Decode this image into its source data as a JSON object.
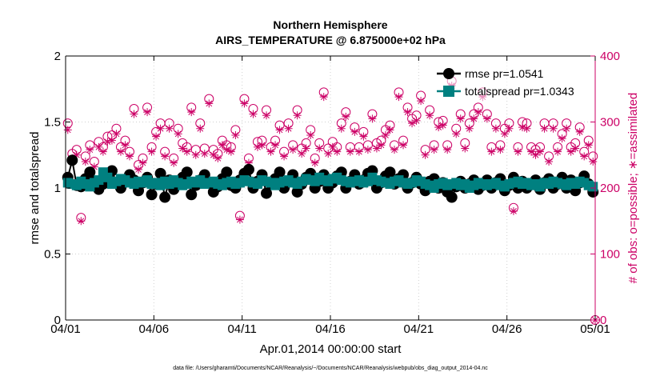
{
  "chart_data": {
    "type": "line",
    "title": [
      "Northern Hemisphere",
      "AIRS_TEMPERATURE @ 6.875000e+02 hPa"
    ],
    "xlabel": "Apr.01,2014 00:00:00 start",
    "ylabel": "rmse and totalspread",
    "y2label": "# of obs: o=possible; ∗=assimilated",
    "footnote": "data file: /Users/gharamti/Documents/NCAR/Reanalysis/~/Documents/NCAR/Reanalysis/webpub/obs_diag_output_2014-04.nc",
    "xlim": [
      0,
      30
    ],
    "ylim": [
      0,
      2
    ],
    "y2lim": [
      0,
      400
    ],
    "x_ticks": [
      0,
      5,
      10,
      15,
      20,
      25,
      30
    ],
    "x_tick_labels": [
      "04/01",
      "04/06",
      "04/11",
      "04/16",
      "04/21",
      "04/26",
      "05/01"
    ],
    "y_ticks": [
      0,
      0.5,
      1,
      1.5,
      2
    ],
    "y_tick_labels": [
      "0",
      "0.5",
      "1",
      "1.5",
      "2"
    ],
    "y2_ticks": [
      0,
      100,
      200,
      300,
      400
    ],
    "y2_tick_labels": [
      "0",
      "100",
      "200",
      "300",
      "400"
    ],
    "legend_position": "top-right",
    "series": [
      {
        "name": "rmse pr=1.0541",
        "axis": "left",
        "color": "#000000",
        "marker": "filled-circle",
        "x": [
          0.125,
          0.375,
          0.625,
          0.875,
          1.125,
          1.375,
          1.625,
          1.875,
          2.125,
          2.375,
          2.625,
          2.875,
          3.125,
          3.375,
          3.625,
          3.875,
          4.125,
          4.375,
          4.625,
          4.875,
          5.125,
          5.375,
          5.625,
          5.875,
          6.125,
          6.375,
          6.625,
          6.875,
          7.125,
          7.375,
          7.625,
          7.875,
          8.125,
          8.375,
          8.625,
          8.875,
          9.125,
          9.375,
          9.625,
          9.875,
          10.125,
          10.375,
          10.625,
          10.875,
          11.125,
          11.375,
          11.625,
          11.875,
          12.125,
          12.375,
          12.625,
          12.875,
          13.125,
          13.375,
          13.625,
          13.875,
          14.125,
          14.375,
          14.625,
          14.875,
          15.125,
          15.375,
          15.625,
          15.875,
          16.125,
          16.375,
          16.625,
          16.875,
          17.125,
          17.375,
          17.625,
          17.875,
          18.125,
          18.375,
          18.625,
          18.875,
          19.125,
          19.375,
          19.625,
          19.875,
          20.125,
          20.375,
          20.625,
          20.875,
          21.125,
          21.375,
          21.625,
          21.875,
          22.125,
          22.375,
          22.625,
          22.875,
          23.125,
          23.375,
          23.625,
          23.875,
          24.125,
          24.375,
          24.625,
          24.875,
          25.125,
          25.375,
          25.625,
          25.875,
          26.125,
          26.375,
          26.625,
          26.875,
          27.125,
          27.375,
          27.625,
          27.875,
          28.125,
          28.375,
          28.625,
          28.875,
          29.125,
          29.375,
          29.625,
          29.875
        ],
        "values": [
          1.08,
          1.21,
          1.02,
          1.01,
          1.07,
          1.12,
          1.05,
          0.99,
          1.03,
          1.08,
          1.13,
          1.04,
          1.0,
          1.05,
          1.1,
          1.06,
          0.98,
          1.04,
          1.08,
          0.95,
          1.03,
          1.11,
          0.93,
          1.06,
          0.99,
          1.04,
          1.08,
          1.12,
          0.95,
          1.02,
          1.06,
          1.1,
          1.04,
          0.97,
          1.01,
          1.07,
          1.12,
          1.02,
          1.0,
          1.06,
          1.11,
          1.14,
          1.0,
          1.05,
          1.1,
          0.96,
          1.03,
          1.07,
          1.12,
          1.0,
          1.05,
          1.1,
          0.97,
          1.03,
          1.08,
          1.11,
          1.0,
          1.05,
          1.1,
          1.0,
          1.04,
          1.09,
          1.12,
          1.0,
          1.05,
          1.1,
          1.03,
          1.06,
          1.11,
          1.13,
          1.0,
          1.04,
          1.09,
          1.12,
          1.03,
          1.07,
          1.1,
          1.0,
          1.04,
          1.08,
          1.03,
          0.98,
          1.05,
          1.07,
          1.0,
          1.04,
          0.97,
          0.93,
          1.01,
          1.05,
          1.0,
          1.03,
          1.06,
          0.99,
          1.02,
          1.06,
          1.0,
          1.04,
          1.07,
          0.98,
          1.02,
          1.08,
          1.0,
          1.05,
          1.0,
          1.03,
          1.06,
          0.99,
          1.04,
          1.07,
          1.0,
          1.03,
          1.08,
          1.0,
          1.06,
          0.98,
          1.04,
          1.09,
          1.03,
          0.97
        ]
      },
      {
        "name": "totalspread pr=1.0343",
        "axis": "left",
        "color": "#008080",
        "marker": "filled-square",
        "x": [
          0.125,
          0.375,
          0.625,
          0.875,
          1.125,
          1.375,
          1.625,
          1.875,
          2.125,
          2.375,
          2.625,
          2.875,
          3.125,
          3.375,
          3.625,
          3.875,
          4.125,
          4.375,
          4.625,
          4.875,
          5.125,
          5.375,
          5.625,
          5.875,
          6.125,
          6.375,
          6.625,
          6.875,
          7.125,
          7.375,
          7.625,
          7.875,
          8.125,
          8.375,
          8.625,
          8.875,
          9.125,
          9.375,
          9.625,
          9.875,
          10.125,
          10.375,
          10.625,
          10.875,
          11.125,
          11.375,
          11.625,
          11.875,
          12.125,
          12.375,
          12.625,
          12.875,
          13.125,
          13.375,
          13.625,
          13.875,
          14.125,
          14.375,
          14.625,
          14.875,
          15.125,
          15.375,
          15.625,
          15.875,
          16.125,
          16.375,
          16.625,
          16.875,
          17.125,
          17.375,
          17.625,
          17.875,
          18.125,
          18.375,
          18.625,
          18.875,
          19.125,
          19.375,
          19.625,
          19.875,
          20.125,
          20.375,
          20.625,
          20.875,
          21.125,
          21.375,
          21.625,
          21.875,
          22.125,
          22.375,
          22.625,
          22.875,
          23.125,
          23.375,
          23.625,
          23.875,
          24.125,
          24.375,
          24.625,
          24.875,
          25.125,
          25.375,
          25.625,
          25.875,
          26.125,
          26.375,
          26.625,
          26.875,
          27.125,
          27.375,
          27.625,
          27.875,
          28.125,
          28.375,
          28.625,
          28.875,
          29.125,
          29.375,
          29.625,
          29.875
        ],
        "values": [
          1.04,
          1.03,
          1.02,
          1.05,
          1.03,
          1.01,
          1.04,
          1.06,
          1.12,
          1.08,
          1.03,
          1.05,
          1.07,
          1.06,
          1.04,
          1.03,
          1.05,
          1.04,
          1.06,
          1.03,
          1.04,
          1.02,
          1.05,
          1.03,
          1.06,
          1.04,
          1.02,
          1.03,
          1.05,
          1.04,
          1.06,
          1.03,
          1.04,
          1.05,
          1.03,
          1.02,
          1.04,
          1.05,
          1.03,
          1.04,
          1.06,
          1.05,
          1.04,
          1.03,
          1.06,
          1.05,
          1.04,
          1.02,
          1.04,
          1.05,
          1.06,
          1.04,
          1.03,
          1.05,
          1.07,
          1.06,
          1.05,
          1.08,
          1.06,
          1.05,
          1.07,
          1.08,
          1.06,
          1.05,
          1.04,
          1.05,
          1.06,
          1.04,
          1.05,
          1.08,
          1.06,
          1.05,
          1.04,
          1.03,
          1.05,
          1.06,
          1.04,
          1.03,
          1.04,
          1.06,
          1.05,
          1.03,
          1.02,
          1.0,
          1.03,
          1.04,
          1.02,
          1.03,
          1.04,
          1.02,
          1.03,
          1.0,
          1.02,
          1.04,
          1.03,
          1.02,
          1.03,
          1.04,
          1.02,
          1.01,
          1.03,
          1.04,
          1.05,
          1.03,
          1.04,
          1.02,
          1.03,
          1.01,
          1.04,
          1.03,
          1.05,
          1.04,
          1.03,
          1.02,
          1.04,
          1.03,
          1.05,
          1.04,
          1.02,
          1.01
        ]
      },
      {
        "name": "# of obs possible",
        "axis": "right",
        "color": "#cc0066",
        "marker": "open-circle",
        "x": [
          0.125,
          0.375,
          0.625,
          0.875,
          1.125,
          1.375,
          1.625,
          1.875,
          2.125,
          2.375,
          2.625,
          2.875,
          3.125,
          3.375,
          3.625,
          3.875,
          4.125,
          4.375,
          4.625,
          4.875,
          5.125,
          5.375,
          5.625,
          5.875,
          6.125,
          6.375,
          6.625,
          6.875,
          7.125,
          7.375,
          7.625,
          7.875,
          8.125,
          8.375,
          8.625,
          8.875,
          9.125,
          9.375,
          9.625,
          9.875,
          10.125,
          10.375,
          10.625,
          10.875,
          11.125,
          11.375,
          11.625,
          11.875,
          12.125,
          12.375,
          12.625,
          12.875,
          13.125,
          13.375,
          13.625,
          13.875,
          14.125,
          14.375,
          14.625,
          14.875,
          15.125,
          15.375,
          15.625,
          15.875,
          16.125,
          16.375,
          16.625,
          16.875,
          17.125,
          17.375,
          17.625,
          17.875,
          18.125,
          18.375,
          18.625,
          18.875,
          19.125,
          19.375,
          19.625,
          19.875,
          20.125,
          20.375,
          20.625,
          20.875,
          21.125,
          21.375,
          21.625,
          21.875,
          22.125,
          22.375,
          22.625,
          22.875,
          23.125,
          23.375,
          23.625,
          23.875,
          24.125,
          24.375,
          24.625,
          24.875,
          25.125,
          25.375,
          25.625,
          25.875,
          26.125,
          26.375,
          26.625,
          26.875,
          27.125,
          27.375,
          27.625,
          27.875,
          28.125,
          28.375,
          28.625,
          28.875,
          29.125,
          29.375,
          29.625,
          29.875
        ],
        "values": [
          298,
          252,
          258,
          155,
          248,
          265,
          240,
          270,
          262,
          278,
          280,
          290,
          262,
          272,
          255,
          320,
          235,
          245,
          322,
          262,
          285,
          298,
          255,
          298,
          245,
          290,
          268,
          262,
          322,
          258,
          298,
          260,
          335,
          258,
          252,
          272,
          265,
          262,
          288,
          158,
          335,
          245,
          320,
          270,
          272,
          318,
          262,
          272,
          295,
          255,
          298,
          265,
          318,
          260,
          268,
          288,
          245,
          268,
          345,
          260,
          270,
          262,
          298,
          315,
          262,
          292,
          262,
          285,
          265,
          312,
          268,
          272,
          288,
          295,
          265,
          345,
          272,
          322,
          305,
          310,
          340,
          258,
          318,
          265,
          300,
          302,
          265,
          362,
          290,
          312,
          268,
          298,
          312,
          322,
          345,
          312,
          262,
          298,
          265,
          290,
          298,
          170,
          262,
          300,
          298,
          262,
          258,
          262,
          298,
          248,
          298,
          262,
          282,
          298,
          262,
          268,
          292,
          255,
          272,
          248
        ]
      },
      {
        "name": "# of obs assimilated",
        "axis": "right",
        "color": "#cc0066",
        "marker": "asterisk",
        "x": [
          0.125,
          0.375,
          0.625,
          0.875,
          1.125,
          1.375,
          1.625,
          1.875,
          2.125,
          2.375,
          2.625,
          2.875,
          3.125,
          3.375,
          3.625,
          3.875,
          4.125,
          4.375,
          4.625,
          4.875,
          5.125,
          5.375,
          5.625,
          5.875,
          6.125,
          6.375,
          6.625,
          6.875,
          7.125,
          7.375,
          7.625,
          7.875,
          8.125,
          8.375,
          8.625,
          8.875,
          9.125,
          9.375,
          9.625,
          9.875,
          10.125,
          10.375,
          10.625,
          10.875,
          11.125,
          11.375,
          11.625,
          11.875,
          12.125,
          12.375,
          12.625,
          12.875,
          13.125,
          13.375,
          13.625,
          13.875,
          14.125,
          14.375,
          14.625,
          14.875,
          15.125,
          15.375,
          15.625,
          15.875,
          16.125,
          16.375,
          16.625,
          16.875,
          17.125,
          17.375,
          17.625,
          17.875,
          18.125,
          18.375,
          18.625,
          18.875,
          19.125,
          19.375,
          19.625,
          19.875,
          20.125,
          20.375,
          20.625,
          20.875,
          21.125,
          21.375,
          21.625,
          21.875,
          22.125,
          22.375,
          22.625,
          22.875,
          23.125,
          23.375,
          23.625,
          23.875,
          24.125,
          24.375,
          24.625,
          24.875,
          25.125,
          25.375,
          25.625,
          25.875,
          26.125,
          26.375,
          26.625,
          26.875,
          27.125,
          27.375,
          27.625,
          27.875,
          28.125,
          28.375,
          28.625,
          28.875,
          29.125,
          29.375,
          29.625,
          29.875
        ],
        "values": [
          288,
          245,
          250,
          150,
          240,
          258,
          232,
          262,
          255,
          270,
          272,
          282,
          255,
          265,
          248,
          312,
          228,
          238,
          315,
          255,
          278,
          290,
          248,
          290,
          238,
          282,
          260,
          255,
          315,
          250,
          290,
          252,
          328,
          250,
          245,
          265,
          258,
          255,
          280,
          152,
          328,
          238,
          312,
          262,
          265,
          310,
          255,
          265,
          288,
          248,
          290,
          258,
          310,
          252,
          260,
          280,
          238,
          260,
          338,
          252,
          262,
          255,
          290,
          308,
          255,
          285,
          255,
          278,
          258,
          305,
          260,
          265,
          280,
          288,
          258,
          338,
          265,
          315,
          298,
          302,
          332,
          250,
          310,
          258,
          292,
          295,
          258,
          355,
          282,
          305,
          260,
          290,
          305,
          315,
          338,
          305,
          255,
          290,
          258,
          282,
          290,
          165,
          255,
          292,
          290,
          255,
          250,
          255,
          290,
          240,
          290,
          255,
          275,
          290,
          255,
          260,
          285,
          248,
          265,
          240
        ]
      }
    ],
    "extra_points": [
      {
        "series": "# of obs possible",
        "x": 30,
        "y2": 0
      },
      {
        "series": "# of obs assimilated",
        "x": 30,
        "y2": 0
      }
    ]
  }
}
